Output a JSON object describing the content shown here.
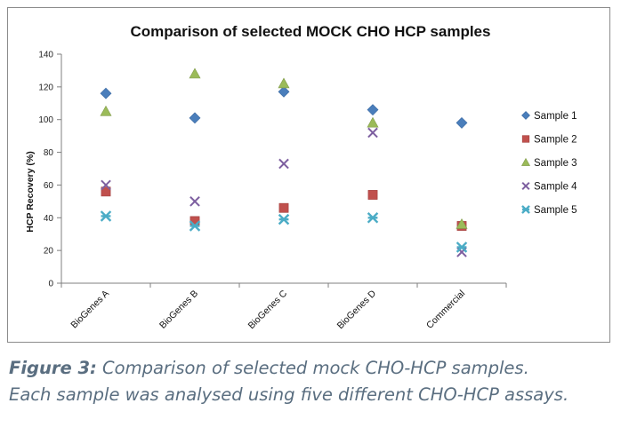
{
  "chart_data": {
    "type": "scatter",
    "title": "Comparison of selected MOCK CHO HCP samples",
    "ylabel": "HCP Recovery (%)",
    "xlabel": "",
    "categories": [
      "BioGenes A",
      "BioGenes B",
      "BioGenes C",
      "BioGenes D",
      "Commercial"
    ],
    "ylim": [
      0,
      140
    ],
    "yticks": [
      0,
      20,
      40,
      60,
      80,
      100,
      120,
      140
    ],
    "grid": false,
    "legend_position": "right",
    "series": [
      {
        "name": "Sample 1",
        "marker": "diamond",
        "color": "#4a7ebb",
        "values": [
          116,
          101,
          117,
          106,
          98
        ]
      },
      {
        "name": "Sample 2",
        "marker": "square",
        "color": "#c0504d",
        "values": [
          56,
          38,
          46,
          54,
          35
        ]
      },
      {
        "name": "Sample 3",
        "marker": "triangle",
        "color": "#9bbb59",
        "values": [
          105,
          128,
          122,
          98,
          36
        ]
      },
      {
        "name": "Sample 4",
        "marker": "x",
        "color": "#7d5fa0",
        "values": [
          60,
          50,
          73,
          92,
          19
        ]
      },
      {
        "name": "Sample 5",
        "marker": "star",
        "color": "#4bacc6",
        "values": [
          41,
          35,
          39,
          40,
          22
        ]
      }
    ]
  },
  "caption": {
    "lead": "Figure 3:",
    "line1_rest": " Comparison of selected mock CHO-HCP samples.",
    "line2": "Each sample was analysed using five different CHO-HCP assays."
  }
}
